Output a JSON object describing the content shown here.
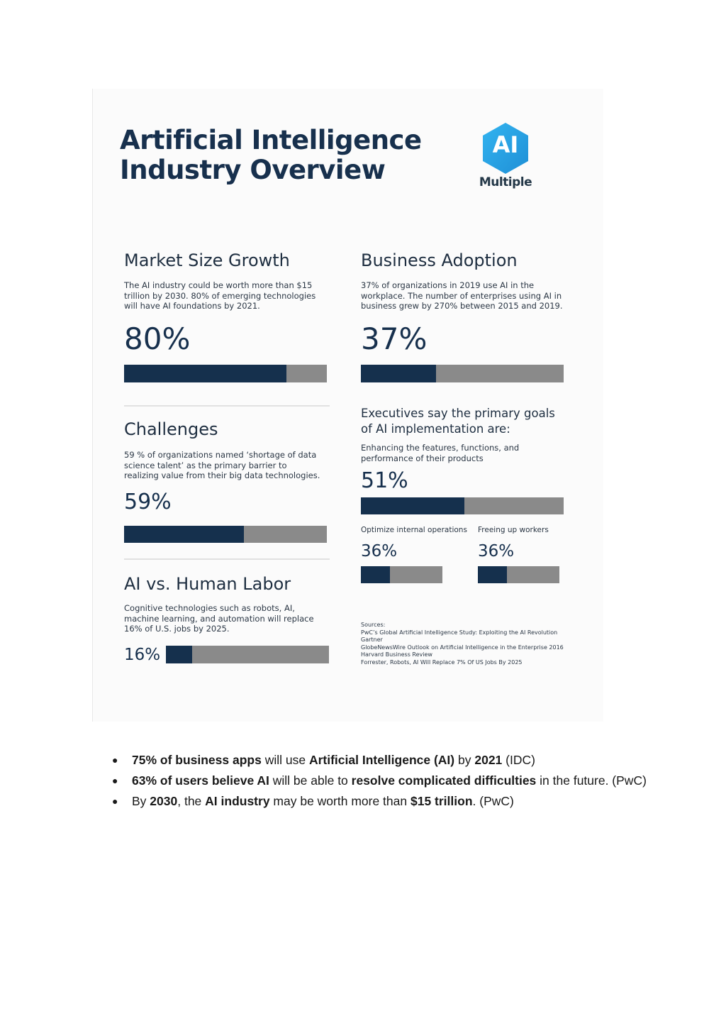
{
  "infographic": {
    "title_line1": "Artificial Intelligence",
    "title_line2": "Industry Overview",
    "logo": {
      "mark": "AI",
      "word": "Multiple",
      "icon": "hexagon-ai-logo",
      "color": "#2aa6e8"
    },
    "colors": {
      "fill": "#15304d",
      "track": "#8a8a8a"
    },
    "market": {
      "heading": "Market Size Growth",
      "desc": "The AI industry could be worth more than $15 trillion by 2030. 80% of emerging technologies will have AI foundations by 2021.",
      "value": "80%",
      "percent": 80
    },
    "adoption": {
      "heading": "Business Adoption",
      "desc": "37% of organizations in 2019 use AI in the workplace. The number of enterprises using AI in business grew by 270% between 2015 and 2019.",
      "value": "37%",
      "percent": 37
    },
    "challenges": {
      "heading": "Challenges",
      "desc": "59 % of organizations named ‘shortage of data science talent’ as the primary barrier to realizing value from their big data technologies.",
      "value": "59%",
      "percent": 59
    },
    "executives": {
      "heading": "Executives say the primary goals of AI implementation are:",
      "main_label": "Enhancing the features, functions, and performance of their products",
      "main_value": "51%",
      "main_percent": 51,
      "left_label": "Optimize internal operations",
      "left_value": "36%",
      "left_percent": 36,
      "right_label": "Freeing up workers",
      "right_value": "36%",
      "right_percent": 36
    },
    "labor": {
      "heading": "AI vs. Human Labor",
      "desc": "Cognitive technologies such as robots, AI, machine learning, and automation will replace 16% of U.S. jobs by 2025.",
      "value": "16%",
      "percent": 16
    },
    "sources": {
      "label": "Sources:",
      "items": [
        "PwC’s Global Artificial Intelligence Study: Exploiting the AI Revolution",
        "Gartner",
        "GlobeNewsWire Outlook on Artificial Intelligence in the Enterprise 2016",
        "Harvard Business Review",
        "Forrester, Robots, AI Will Replace 7% Of US Jobs By 2025"
      ]
    }
  },
  "bullets": [
    {
      "b1": "75% of business apps",
      "t1": " will use ",
      "b2": "Artificial Intelligence (AI)",
      "t2": " by ",
      "b3": "2021",
      "t3": " (IDC)"
    },
    {
      "b1": "63% of users believe AI",
      "t1": " will be able to ",
      "b2": "resolve complicated difficulties",
      "t2": " in the future. (PwC)",
      "b3": "",
      "t3": ""
    },
    {
      "t0": "By ",
      "b1": "2030",
      "t1": ", the ",
      "b2": "AI industry",
      "t2": " may be worth more than ",
      "b3": "$15 trillion",
      "t3": ". (PwC)"
    }
  ],
  "bullet_glyph": "●"
}
